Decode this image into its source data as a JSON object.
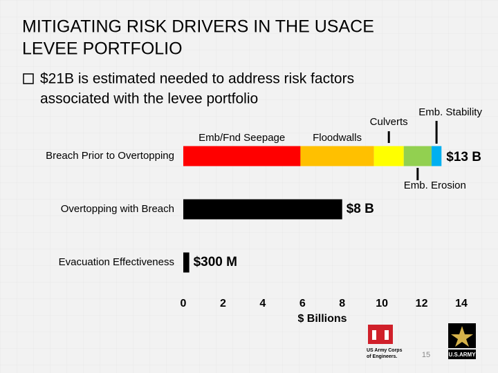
{
  "slide": {
    "title_lines": [
      "MITIGATING RISK DRIVERS IN THE USACE",
      "LEVEE PORTFOLIO"
    ],
    "bullet_lines": [
      "$21B is estimated needed to address risk factors",
      "associated with the levee portfolio"
    ],
    "page_number": "15",
    "logo_left_lines": [
      "US Army Corps",
      "of Engineers."
    ],
    "logo_right": "U.S.ARMY"
  },
  "chart_data": {
    "type": "stacked-barh",
    "categories": [
      "Breach Prior to Overtopping",
      "Overtopping with Breach",
      "Evacuation Effectiveness"
    ],
    "series": [
      {
        "name": "Emb/Fnd Seepage",
        "color": "#ff0000",
        "values": [
          5.9,
          null,
          null
        ]
      },
      {
        "name": "Floodwalls",
        "color": "#ffc000",
        "values": [
          3.7,
          null,
          null
        ]
      },
      {
        "name": "Culverts",
        "color": "#ffff00",
        "values": [
          1.5,
          null,
          null
        ]
      },
      {
        "name": "Emb. Erosion",
        "color": "#92d050",
        "values": [
          1.4,
          null,
          null
        ]
      },
      {
        "name": "Emb. Stability",
        "color": "#00b0f0",
        "values": [
          0.5,
          null,
          null
        ]
      },
      {
        "color": "#000000",
        "values": [
          null,
          8,
          0.3
        ],
        "value_labels": [
          null,
          "$8 B",
          "$300 M"
        ]
      }
    ],
    "stack_total": {
      "value": 13,
      "label": "$13 B"
    },
    "xlabel": "$ Billions",
    "xlim": [
      0,
      14
    ],
    "xticks": [
      0,
      2,
      4,
      6,
      8,
      10,
      12,
      14
    ]
  }
}
